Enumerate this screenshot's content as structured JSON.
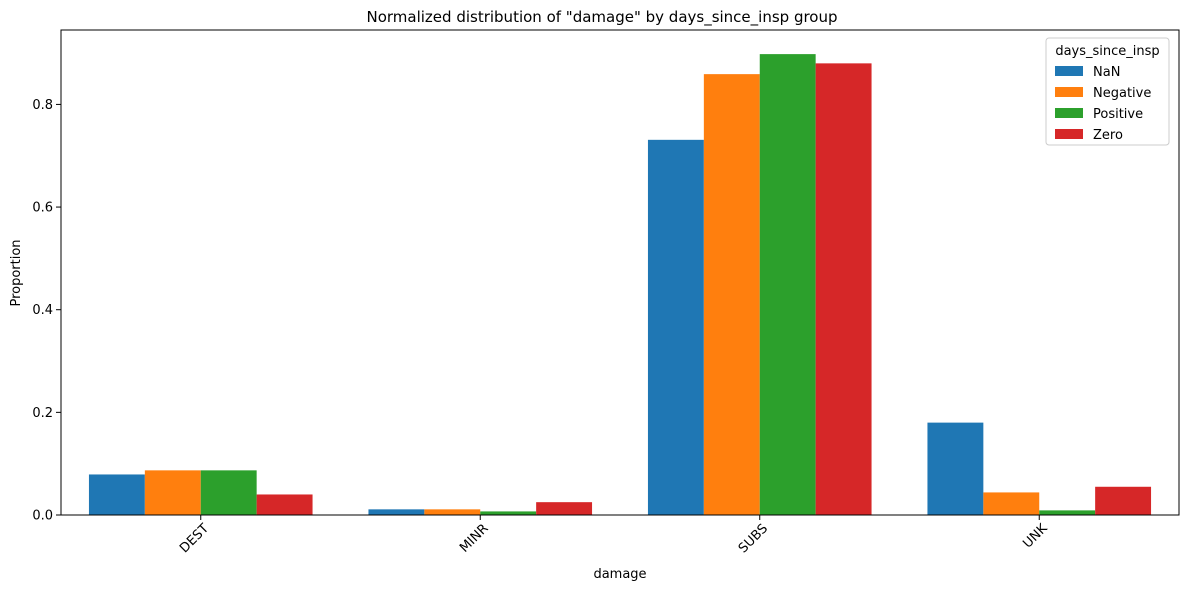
{
  "chart_data": {
    "type": "bar",
    "title": "Normalized distribution of \"damage\" by days_since_insp group",
    "xlabel": "damage",
    "ylabel": "Proportion",
    "categories": [
      "DEST",
      "MINR",
      "SUBS",
      "UNK"
    ],
    "series": [
      {
        "name": "NaN",
        "color": "#1f77b4",
        "values": [
          0.079,
          0.011,
          0.731,
          0.18
        ]
      },
      {
        "name": "Negative",
        "color": "#ff7f0e",
        "values": [
          0.087,
          0.011,
          0.859,
          0.044
        ]
      },
      {
        "name": "Positive",
        "color": "#2ca02c",
        "values": [
          0.087,
          0.007,
          0.898,
          0.009
        ]
      },
      {
        "name": "Zero",
        "color": "#d62728",
        "values": [
          0.04,
          0.025,
          0.88,
          0.055
        ]
      }
    ],
    "ylim": [
      0,
      0.945
    ],
    "yticks": [
      0.0,
      0.2,
      0.4,
      0.6,
      0.8
    ],
    "ytick_labels": [
      "0.0",
      "0.2",
      "0.4",
      "0.6",
      "0.8"
    ],
    "xtick_rotation_deg": 45,
    "grid": false,
    "legend": {
      "title": "days_since_insp",
      "placement": "top-right"
    }
  }
}
